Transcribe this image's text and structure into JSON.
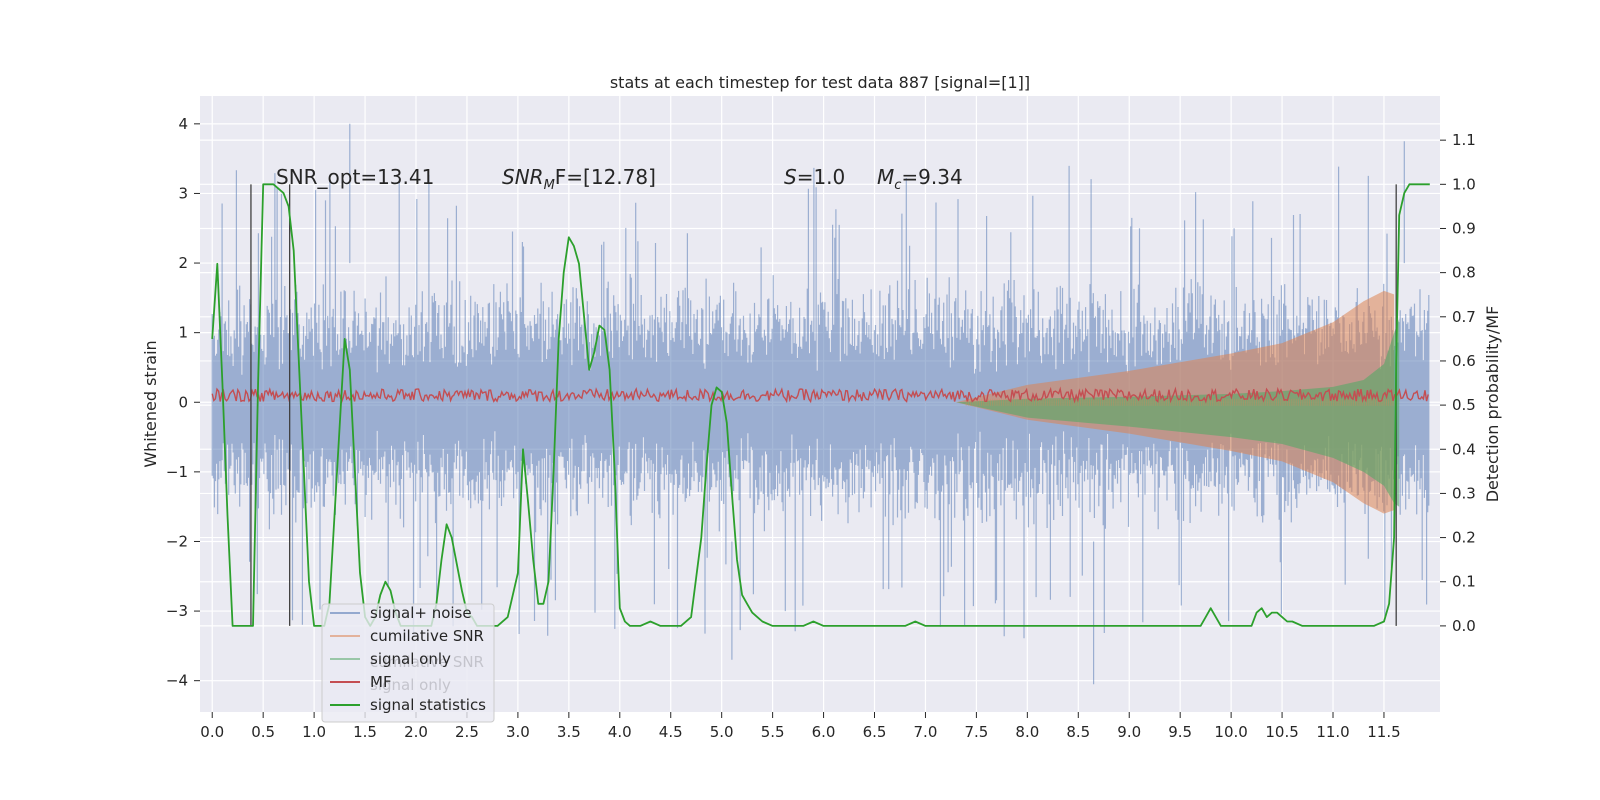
{
  "chart_data": {
    "type": "line",
    "title": "stats at each timestep for test data 887 [signal=[1]]",
    "xlabel": "",
    "ylabel": "Whitened strain",
    "ylabel_right": "Detection probability/MF",
    "xlim": [
      -0.12,
      12.05
    ],
    "ylim": [
      -4.45,
      4.4
    ],
    "ylim_right": [
      -0.195,
      1.2
    ],
    "x_ticks": [
      "0.0",
      "0.5",
      "1.0",
      "1.5",
      "2.0",
      "2.5",
      "3.0",
      "3.5",
      "4.0",
      "4.5",
      "5.0",
      "5.5",
      "6.0",
      "6.5",
      "7.0",
      "7.5",
      "8.0",
      "8.5",
      "9.0",
      "9.5",
      "10.0",
      "10.5",
      "11.0",
      "11.5"
    ],
    "y_ticks": [
      "4",
      "3",
      "2",
      "1",
      "0",
      "−1",
      "−2",
      "−3",
      "−4"
    ],
    "y_ticks_right": [
      "1.1",
      "1.0",
      "0.9",
      "0.8",
      "0.7",
      "0.6",
      "0.5",
      "0.4",
      "0.3",
      "0.2",
      "0.1",
      "0.0"
    ],
    "annotations": [
      {
        "label": "SNR_opt=13.41"
      },
      {
        "label": "SNR",
        "sub": "M",
        "suffix": "F=[12.78]"
      },
      {
        "label": "S",
        "suffix": "=1.0"
      },
      {
        "label": "M",
        "sub": "c",
        "suffix": "=9.34"
      }
    ],
    "legend": {
      "position": "lower-left",
      "entries": [
        {
          "label": "signal+ noise",
          "color": "#4c72b0"
        },
        {
          "label": "cumilative SNR",
          "color": "#dd8452"
        },
        {
          "label": "signal only",
          "color": "#55a868"
        },
        {
          "label": "MF",
          "color": "#c44e52"
        },
        {
          "label": "signal statistics",
          "color": "#2ca02c"
        }
      ],
      "ghost_labels": [
        "cumilative SNR",
        "signal only"
      ]
    },
    "series": [
      {
        "name": "signal+ noise",
        "kind": "noise-band",
        "x_range": [
          0.0,
          11.95
        ],
        "typical_amplitude": 1.9,
        "peak_max": 4.0,
        "peak_min": -4.05
      },
      {
        "name": "cumilative SNR",
        "kind": "envelope",
        "x": [
          7.3,
          8.0,
          9.0,
          10.0,
          10.5,
          11.0,
          11.3,
          11.5,
          11.6
        ],
        "upper": [
          0.0,
          0.25,
          0.45,
          0.7,
          0.85,
          1.15,
          1.45,
          1.6,
          1.55
        ],
        "lower": [
          0.0,
          -0.25,
          -0.45,
          -0.7,
          -0.85,
          -1.15,
          -1.45,
          -1.6,
          -1.55
        ]
      },
      {
        "name": "signal only",
        "kind": "envelope",
        "x": [
          7.3,
          8.0,
          9.0,
          10.0,
          10.5,
          11.0,
          11.3,
          11.5,
          11.6,
          11.65
        ],
        "upper": [
          0.0,
          0.05,
          0.08,
          0.12,
          0.16,
          0.22,
          0.32,
          0.55,
          1.0,
          1.2
        ],
        "lower": [
          0.0,
          -0.22,
          -0.35,
          -0.5,
          -0.6,
          -0.8,
          -1.0,
          -1.2,
          -1.45,
          -1.5
        ]
      },
      {
        "name": "MF",
        "kind": "noise-band",
        "x_range": [
          0.0,
          11.95
        ],
        "center": 0.1,
        "typical_amplitude": 0.09
      },
      {
        "name": "signal statistics",
        "kind": "line",
        "axis": "right",
        "x": [
          0.0,
          0.05,
          0.1,
          0.15,
          0.2,
          0.25,
          0.3,
          0.35,
          0.4,
          0.45,
          0.5,
          0.55,
          0.6,
          0.65,
          0.7,
          0.75,
          0.8,
          0.85,
          0.9,
          0.95,
          1.0,
          1.05,
          1.1,
          1.15,
          1.2,
          1.25,
          1.3,
          1.35,
          1.4,
          1.45,
          1.5,
          1.55,
          1.6,
          1.65,
          1.7,
          1.75,
          1.8,
          1.85,
          1.9,
          1.95,
          2.0,
          2.05,
          2.1,
          2.15,
          2.2,
          2.25,
          2.3,
          2.35,
          2.4,
          2.45,
          2.5,
          2.55,
          2.6,
          2.7,
          2.8,
          2.9,
          3.0,
          3.05,
          3.1,
          3.15,
          3.2,
          3.25,
          3.3,
          3.35,
          3.4,
          3.45,
          3.5,
          3.55,
          3.6,
          3.65,
          3.7,
          3.75,
          3.8,
          3.85,
          3.9,
          3.95,
          4.0,
          4.05,
          4.1,
          4.15,
          4.2,
          4.3,
          4.4,
          4.5,
          4.6,
          4.7,
          4.8,
          4.85,
          4.9,
          4.95,
          5.0,
          5.05,
          5.1,
          5.15,
          5.2,
          5.25,
          5.3,
          5.35,
          5.4,
          5.5,
          5.6,
          5.7,
          5.8,
          5.9,
          6.0,
          6.5,
          6.7,
          6.8,
          6.9,
          7.0,
          7.5,
          8.0,
          8.5,
          9.0,
          9.5,
          9.6,
          9.7,
          9.75,
          9.8,
          9.85,
          9.9,
          9.95,
          10.0,
          10.1,
          10.2,
          10.25,
          10.3,
          10.35,
          10.4,
          10.45,
          10.5,
          10.55,
          10.6,
          10.7,
          10.8,
          11.0,
          11.2,
          11.4,
          11.5,
          11.55,
          11.6,
          11.62,
          11.65,
          11.7,
          11.75,
          11.8,
          11.9,
          11.95
        ],
        "y": [
          0.65,
          0.82,
          0.55,
          0.25,
          0.0,
          0.0,
          0.0,
          0.0,
          0.0,
          0.55,
          1.0,
          1.0,
          1.0,
          0.99,
          0.98,
          0.95,
          0.85,
          0.6,
          0.35,
          0.1,
          0.0,
          0.0,
          0.0,
          0.05,
          0.25,
          0.45,
          0.65,
          0.58,
          0.35,
          0.12,
          0.02,
          0.0,
          0.02,
          0.07,
          0.1,
          0.08,
          0.03,
          0.0,
          0.0,
          0.0,
          0.0,
          0.0,
          0.0,
          0.0,
          0.05,
          0.15,
          0.23,
          0.2,
          0.14,
          0.08,
          0.03,
          0.02,
          0.0,
          0.0,
          0.0,
          0.02,
          0.12,
          0.4,
          0.28,
          0.15,
          0.05,
          0.05,
          0.1,
          0.35,
          0.65,
          0.8,
          0.88,
          0.86,
          0.82,
          0.7,
          0.58,
          0.62,
          0.68,
          0.67,
          0.58,
          0.35,
          0.04,
          0.01,
          0.0,
          0.0,
          0.0,
          0.01,
          0.0,
          0.0,
          0.0,
          0.02,
          0.2,
          0.36,
          0.5,
          0.54,
          0.53,
          0.46,
          0.3,
          0.15,
          0.07,
          0.05,
          0.03,
          0.02,
          0.01,
          0.0,
          0.0,
          0.0,
          0.0,
          0.01,
          0.0,
          0.0,
          0.0,
          0.0,
          0.01,
          0.0,
          0.0,
          0.0,
          0.0,
          0.0,
          0.0,
          0.0,
          0.0,
          0.02,
          0.04,
          0.02,
          0.0,
          0.0,
          0.0,
          0.0,
          0.0,
          0.03,
          0.04,
          0.02,
          0.03,
          0.03,
          0.02,
          0.01,
          0.01,
          0.0,
          0.0,
          0.0,
          0.0,
          0.0,
          0.01,
          0.05,
          0.2,
          0.6,
          0.93,
          0.98,
          1.0,
          1.0,
          1.0,
          1.0
        ]
      }
    ]
  }
}
